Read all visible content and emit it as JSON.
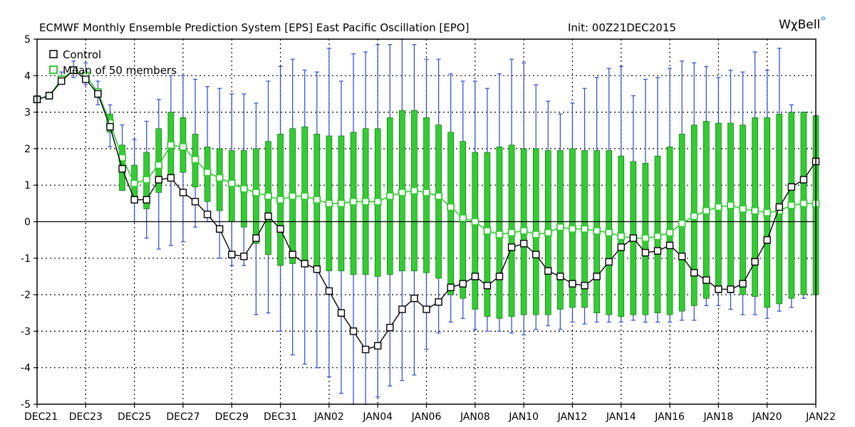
{
  "header": {
    "title": "ECMWF Monthly Ensemble Prediction System [EPS] East Pacific Oscillation [EPO]",
    "init": "Init: 00Z21DEC2015",
    "brand_main": "Wχ",
    "brand_tail": "Bell",
    "brand_mark": "°"
  },
  "chart_data": {
    "type": "line",
    "title": "ECMWF Monthly Ensemble Prediction System [EPS] East Pacific Oscillation [EPO]",
    "xlabel": "",
    "ylabel": "",
    "ylim": [
      -5,
      5
    ],
    "yticks": [
      -5,
      -4,
      -3,
      -2,
      -1,
      0,
      1,
      2,
      3,
      4,
      5
    ],
    "xlim": [
      "DEC21",
      "JAN22"
    ],
    "xtick_labels": [
      "DEC21",
      "DEC23",
      "DEC25",
      "DEC27",
      "DEC29",
      "DEC31",
      "JAN02",
      "JAN04",
      "JAN06",
      "JAN08",
      "JAN10",
      "JAN12",
      "JAN14",
      "JAN16",
      "JAN18",
      "JAN20",
      "JAN22"
    ],
    "grid": true,
    "legend_position": "top-left",
    "time_step": "12h",
    "series": [
      {
        "name": "Control",
        "color": "#000000",
        "marker": "hollow-square",
        "values": [
          3.35,
          3.45,
          3.85,
          4.15,
          3.9,
          3.5,
          2.6,
          1.45,
          0.6,
          0.6,
          1.15,
          1.2,
          0.8,
          0.55,
          0.2,
          -0.2,
          -0.9,
          -0.95,
          -0.45,
          0.15,
          -0.2,
          -0.9,
          -1.15,
          -1.3,
          -1.9,
          -2.5,
          -3.0,
          -3.5,
          -3.4,
          -2.9,
          -2.4,
          -2.1,
          -2.4,
          -2.2,
          -1.8,
          -1.7,
          -1.5,
          -1.75,
          -1.5,
          -0.7,
          -0.6,
          -0.9,
          -1.35,
          -1.5,
          -1.7,
          -1.75,
          -1.5,
          -1.1,
          -0.7,
          -0.45,
          -0.85,
          -0.8,
          -0.65,
          -0.95,
          -1.4,
          -1.6,
          -1.85,
          -1.85,
          -1.7,
          -1.1,
          -0.5,
          0.4,
          0.95,
          1.15,
          1.65
        ]
      },
      {
        "name": "Mean of 50 members",
        "color": "#33cc33",
        "marker": "hollow-square",
        "values": [
          3.35,
          3.45,
          3.9,
          4.15,
          4.0,
          3.55,
          2.7,
          1.75,
          1.05,
          1.15,
          1.55,
          2.1,
          2.05,
          1.7,
          1.35,
          1.2,
          1.05,
          0.9,
          0.8,
          0.7,
          0.6,
          0.7,
          0.7,
          0.6,
          0.5,
          0.5,
          0.55,
          0.55,
          0.55,
          0.7,
          0.8,
          0.85,
          0.8,
          0.7,
          0.4,
          0.1,
          0.0,
          -0.25,
          -0.35,
          -0.3,
          -0.25,
          -0.35,
          -0.3,
          -0.15,
          -0.2,
          -0.2,
          -0.25,
          -0.3,
          -0.4,
          -0.45,
          -0.45,
          -0.4,
          -0.3,
          -0.05,
          0.15,
          0.3,
          0.4,
          0.45,
          0.35,
          0.3,
          0.25,
          0.3,
          0.45,
          0.5,
          0.5
        ]
      }
    ],
    "ensemble_spread": {
      "box_color": "#33cc33",
      "box_edge_color": "#006600",
      "whisker_color": "#3355dd",
      "box_low": [
        3.35,
        3.45,
        3.85,
        4.05,
        3.85,
        3.4,
        2.45,
        0.85,
        0.6,
        0.35,
        0.8,
        1.25,
        1.35,
        0.95,
        0.55,
        0.3,
        0.0,
        -0.15,
        -0.6,
        -0.9,
        -1.2,
        -1.15,
        -1.2,
        -1.3,
        -1.35,
        -1.35,
        -1.45,
        -1.45,
        -1.5,
        -1.45,
        -1.35,
        -1.35,
        -1.4,
        -1.55,
        -2.0,
        -2.1,
        -2.4,
        -2.6,
        -2.65,
        -2.6,
        -2.55,
        -2.55,
        -2.55,
        -2.4,
        -2.35,
        -2.35,
        -2.5,
        -2.55,
        -2.6,
        -2.55,
        -2.55,
        -2.5,
        -2.55,
        -2.45,
        -2.3,
        -2.1,
        -1.95,
        -1.95,
        -2.0,
        -2.05,
        -2.35,
        -2.25,
        -2.1,
        -2.0,
        -2.0
      ],
      "box_high": [
        3.4,
        3.5,
        3.95,
        4.25,
        4.1,
        3.65,
        2.95,
        2.1,
        1.55,
        1.9,
        2.55,
        3.0,
        2.85,
        2.4,
        2.05,
        2.0,
        1.95,
        1.95,
        2.0,
        2.2,
        2.4,
        2.55,
        2.6,
        2.4,
        2.35,
        2.35,
        2.45,
        2.55,
        2.55,
        2.85,
        3.05,
        3.05,
        2.85,
        2.65,
        2.45,
        2.2,
        1.9,
        1.9,
        2.05,
        2.1,
        2.0,
        2.0,
        1.95,
        1.95,
        2.0,
        1.95,
        1.95,
        1.95,
        1.8,
        1.65,
        1.6,
        1.8,
        2.05,
        2.4,
        2.65,
        2.75,
        2.7,
        2.7,
        2.65,
        2.85,
        2.85,
        2.95,
        3.0,
        3.0,
        2.9
      ],
      "whisker_low": [
        3.35,
        3.4,
        3.8,
        3.95,
        3.75,
        3.2,
        2.05,
        1.0,
        0.0,
        -0.45,
        -0.75,
        -0.65,
        -0.55,
        -0.15,
        0.0,
        -1.0,
        -1.2,
        -1.2,
        -2.55,
        -2.5,
        -3.0,
        -3.65,
        -3.9,
        -4.0,
        -4.25,
        -4.7,
        -5.0,
        -5.0,
        -4.8,
        -4.5,
        -4.35,
        -4.2,
        -3.5,
        -3.05,
        -2.75,
        -2.65,
        -2.95,
        -3.0,
        -3.0,
        -3.05,
        -3.1,
        -2.95,
        -2.85,
        -2.95,
        -2.75,
        -2.8,
        -2.75,
        -2.75,
        -2.75,
        -2.7,
        -2.75,
        -2.75,
        -2.75,
        -2.7,
        -2.7,
        -2.3,
        -2.3,
        -2.4,
        -2.55,
        -2.55,
        -2.65,
        -2.45,
        -2.35,
        -2.1,
        -2.0
      ],
      "whisker_high": [
        3.45,
        3.55,
        4.1,
        4.4,
        4.35,
        3.85,
        3.2,
        2.65,
        2.25,
        2.75,
        3.35,
        4.0,
        4.0,
        3.9,
        3.7,
        3.65,
        3.5,
        3.5,
        3.25,
        3.85,
        4.25,
        4.45,
        4.15,
        4.1,
        4.75,
        3.85,
        4.6,
        4.65,
        4.85,
        4.85,
        5.0,
        4.85,
        4.45,
        4.45,
        4.05,
        3.85,
        3.85,
        3.65,
        4.05,
        4.45,
        4.35,
        3.75,
        3.3,
        2.95,
        3.25,
        3.65,
        3.95,
        4.2,
        4.25,
        3.45,
        3.9,
        3.95,
        4.2,
        4.4,
        4.35,
        4.25,
        3.95,
        4.15,
        4.1,
        4.65,
        4.15,
        4.75,
        3.2,
        3.0,
        2.9
      ]
    }
  }
}
